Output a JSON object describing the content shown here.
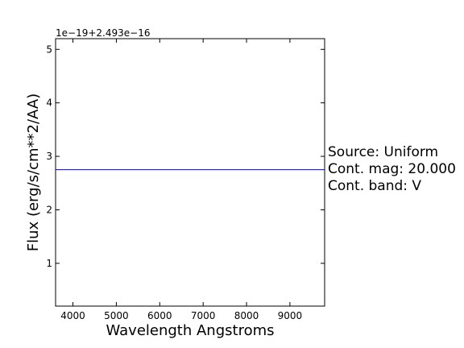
{
  "chart_data": {
    "type": "line",
    "title": "",
    "xlabel": "Wavelength Angstroms",
    "ylabel": "Flux (erg/s/cm**2/AA)",
    "y_offset_label": "1e−19+2.493e−16",
    "xlim": [
      3600,
      9800
    ],
    "ylim": [
      0.2,
      5.2
    ],
    "x_ticks": [
      4000,
      5000,
      6000,
      7000,
      8000,
      9000
    ],
    "y_ticks": [
      1,
      2,
      3,
      4,
      5
    ],
    "grid": false,
    "series": [
      {
        "x": [
          3600,
          9800
        ],
        "y": [
          2.75,
          2.75
        ],
        "color": "#0000ff"
      }
    ],
    "annotation": {
      "lines": [
        "Source: Uniform",
        "Cont. mag: 20.000",
        "Cont. band: V"
      ]
    }
  }
}
